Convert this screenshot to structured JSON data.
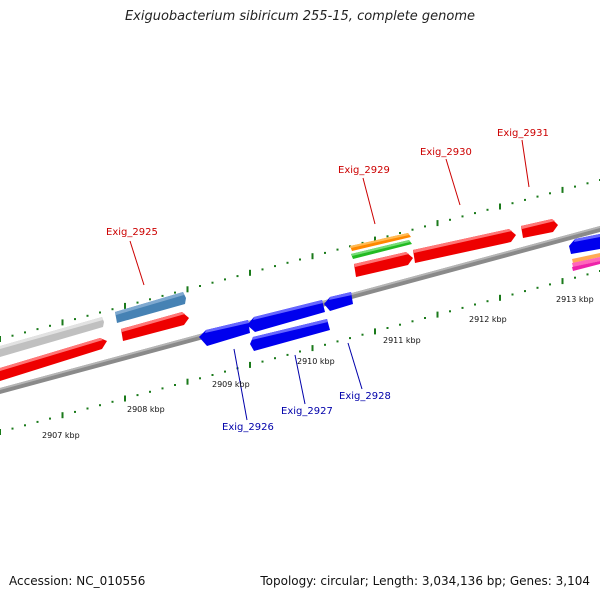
{
  "title": "Exiguobacterium sibiricum 255-15, complete genome",
  "footer": {
    "accession": "Accession: NC_010556",
    "summary": "Topology: circular; Length: 3,034,136 bp; Genes: 3,104"
  },
  "kbp_labels": [
    "2907 kbp",
    "2908 kbp",
    "2909 kbp",
    "2910 kbp",
    "2911 kbp",
    "2912 kbp",
    "2913 kbp"
  ],
  "gene_labels": {
    "forward": [
      "Exig_2925",
      "Exig_2929",
      "Exig_2930",
      "Exig_2931"
    ],
    "reverse": [
      "Exig_2926",
      "Exig_2927",
      "Exig_2928"
    ]
  },
  "colors": {
    "forward_gene": "#ff0000",
    "reverse_gene": "#0000ff",
    "forward_label": "#cc0000",
    "reverse_label": "#0000aa",
    "backbone": "#777777",
    "tick": "#1a7a1a",
    "orange_track": "#ff8800",
    "green_track": "#33cc33",
    "steelblue_track": "#4682b4",
    "gray_track": "#c8c8c8"
  }
}
